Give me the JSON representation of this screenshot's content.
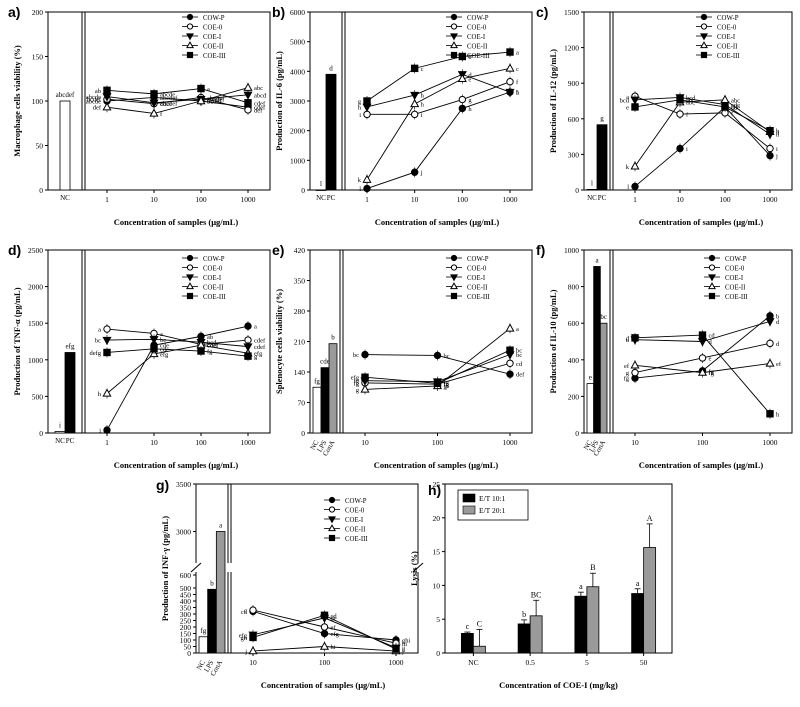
{
  "series_names": [
    "COW-P",
    "COE-0",
    "COE-I",
    "COE-II",
    "COE-III"
  ],
  "colors": {
    "ink": "#000000",
    "grey_bar": "#9a9a9a",
    "white": "#ffffff"
  },
  "chart_data": [
    {
      "panel": "a)",
      "type": "line",
      "ylabel": "Macrophage cells viability (%)",
      "xlabel": "Concentration of samples (μg/mL)",
      "ylim": [
        0,
        200
      ],
      "yticks": [
        0,
        50,
        100,
        150,
        200
      ],
      "control_bars": [
        {
          "label": "NC",
          "value": 100,
          "fill": "white",
          "sig": "abcdef"
        }
      ],
      "x": [
        "1",
        "10",
        "100",
        "1000"
      ],
      "series": [
        {
          "name": "COW-P",
          "values": [
            100,
            104,
            100,
            93
          ],
          "labels": [
            "abcde",
            "abcdef",
            "bcdef",
            "cdef"
          ]
        },
        {
          "name": "COE-0",
          "values": [
            102,
            97,
            104,
            90
          ],
          "labels": [
            "bcdef",
            "cdef",
            "abcdef",
            "def"
          ]
        },
        {
          "name": "COE-I",
          "values": [
            105,
            98,
            102,
            107
          ],
          "labels": [
            "abcde",
            "abcdef",
            "abcdef",
            "abcd"
          ]
        },
        {
          "name": "COE-II",
          "values": [
            93,
            86,
            100,
            115
          ],
          "labels": [
            "def",
            "f",
            "bcdef",
            "abc"
          ]
        },
        {
          "name": "COE-III",
          "values": [
            112,
            108,
            114,
            98
          ],
          "labels": [
            "ab",
            "abcde",
            "a",
            "cdef"
          ]
        }
      ]
    },
    {
      "panel": "b)",
      "type": "line",
      "ylabel": "Production of IL-6 (pg/mL)",
      "xlabel": "Concentration of samples (μg/mL)",
      "ylim": [
        0,
        6000
      ],
      "yticks": [
        0,
        1000,
        2000,
        3000,
        4000,
        5000,
        6000
      ],
      "control_bars": [
        {
          "label": "NC",
          "value": 0,
          "fill": "white",
          "sig": "l"
        },
        {
          "label": "PC",
          "value": 3900,
          "fill": "black",
          "sig": "d"
        }
      ],
      "x": [
        "1",
        "10",
        "100",
        "1000"
      ],
      "series": [
        {
          "name": "COW-P",
          "values": [
            50,
            600,
            2750,
            3300
          ],
          "labels": [
            "l",
            "j",
            "h",
            "h"
          ]
        },
        {
          "name": "COE-0",
          "values": [
            2550,
            2550,
            3050,
            3650
          ],
          "labels": [
            "i",
            "i",
            "g",
            "f"
          ]
        },
        {
          "name": "COE-I",
          "values": [
            2800,
            3200,
            3900,
            3300
          ],
          "labels": [
            "h",
            "h",
            "d",
            "f"
          ]
        },
        {
          "name": "COE-II",
          "values": [
            350,
            2900,
            3750,
            4100
          ],
          "labels": [
            "k",
            "h",
            "e",
            "c"
          ]
        },
        {
          "name": "COE-III",
          "values": [
            3000,
            4100,
            4500,
            4650
          ],
          "labels": [
            "g",
            "c",
            "b",
            "a"
          ]
        }
      ]
    },
    {
      "panel": "c)",
      "type": "line",
      "ylabel": "Production of IL-12 (pg/mL)",
      "xlabel": "Concentration of samples (μg/mL)",
      "ylim": [
        0,
        1500
      ],
      "yticks": [
        0,
        300,
        600,
        900,
        1200,
        1500
      ],
      "control_bars": [
        {
          "label": "NC",
          "value": 5,
          "fill": "white",
          "sig": "l"
        },
        {
          "label": "PC",
          "value": 550,
          "fill": "black",
          "sig": "g"
        }
      ],
      "x": [
        "1",
        "10",
        "100",
        "1000"
      ],
      "series": [
        {
          "name": "COW-P",
          "values": [
            30,
            350,
            700,
            290
          ],
          "labels": [
            "l",
            "i",
            "abc",
            "j"
          ]
        },
        {
          "name": "COE-0",
          "values": [
            790,
            640,
            650,
            350
          ],
          "labels": [
            "a",
            "f",
            "f",
            "i"
          ]
        },
        {
          "name": "COE-I",
          "values": [
            760,
            780,
            720,
            470
          ],
          "labels": [
            "bcd",
            "bcd",
            "cde",
            "h"
          ]
        },
        {
          "name": "COE-II",
          "values": [
            200,
            740,
            760,
            490
          ],
          "labels": [
            "k",
            "abc",
            "abc",
            "h"
          ]
        },
        {
          "name": "COE-III",
          "values": [
            700,
            760,
            700,
            500
          ],
          "labels": [
            "e",
            "abc",
            "cde",
            "h"
          ]
        }
      ]
    },
    {
      "panel": "d)",
      "type": "line",
      "ylabel": "Production of TNF-α (pg/mL)",
      "xlabel": "Concentration of samples (μg/mL)",
      "ylim": [
        0,
        2500
      ],
      "yticks": [
        0,
        500,
        1000,
        1500,
        2000,
        2500
      ],
      "control_bars": [
        {
          "label": "NC",
          "value": 20,
          "fill": "white",
          "sig": "i"
        },
        {
          "label": "PC",
          "value": 1100,
          "fill": "black",
          "sig": "efg"
        }
      ],
      "x": [
        "1",
        "10",
        "100",
        "1000"
      ],
      "series": [
        {
          "name": "COW-P",
          "values": [
            40,
            1200,
            1320,
            1460
          ],
          "labels": [
            "i",
            "cde",
            "ab",
            "a"
          ]
        },
        {
          "name": "COE-0",
          "values": [
            1420,
            1360,
            1210,
            1270
          ],
          "labels": [
            "a",
            "a",
            "cdef",
            "cdef"
          ]
        },
        {
          "name": "COE-I",
          "values": [
            1270,
            1280,
            1240,
            1180
          ],
          "labels": [
            "bc",
            "bc",
            "bcd",
            "cdef"
          ]
        },
        {
          "name": "COE-II",
          "values": [
            540,
            1080,
            1200,
            1090
          ],
          "labels": [
            "h",
            "efg",
            "cdef",
            "efg"
          ]
        },
        {
          "name": "COE-III",
          "values": [
            1100,
            1150,
            1120,
            1050
          ],
          "labels": [
            "defg",
            "cde",
            "fg",
            "g"
          ]
        }
      ]
    },
    {
      "panel": "e)",
      "type": "line",
      "ylabel": "Splenocyte cells viability (%)",
      "xlabel": "Concentration of samples (μg/mL)",
      "ylim": [
        0,
        420
      ],
      "yticks": [
        0,
        70,
        140,
        210,
        280,
        350,
        420
      ],
      "control_bars": [
        {
          "label": "NC",
          "value": 105,
          "fill": "white",
          "sig": "fg"
        },
        {
          "label": "LPS",
          "value": 150,
          "fill": "black",
          "sig": "cde"
        },
        {
          "label": "ConA",
          "value": 205,
          "fill": "grey",
          "sig": "b"
        }
      ],
      "x": [
        "10",
        "100",
        "1000"
      ],
      "series": [
        {
          "name": "COW-P",
          "values": [
            180,
            178,
            135
          ],
          "labels": [
            "bc",
            "bc",
            "def"
          ]
        },
        {
          "name": "COE-0",
          "values": [
            115,
            112,
            160
          ],
          "labels": [
            "fg",
            "fg",
            "cd"
          ]
        },
        {
          "name": "COE-I",
          "values": [
            120,
            118,
            180
          ],
          "labels": [
            "fg",
            "fg",
            "bc"
          ]
        },
        {
          "name": "COE-II",
          "values": [
            100,
            108,
            240
          ],
          "labels": [
            "g",
            "g",
            "a"
          ]
        },
        {
          "name": "COE-III",
          "values": [
            128,
            114,
            190
          ],
          "labels": [
            "efg",
            "fg",
            "bc"
          ]
        }
      ]
    },
    {
      "panel": "f)",
      "type": "line",
      "ylabel": "Production of IL-10 (pg/mL)",
      "xlabel": "Concentration of samples (μg/mL)",
      "ylim": [
        0,
        1000
      ],
      "yticks": [
        0,
        200,
        400,
        600,
        800,
        1000
      ],
      "control_bars": [
        {
          "label": "NC",
          "value": 270,
          "fill": "white",
          "sig": "e"
        },
        {
          "label": "LPS",
          "value": 910,
          "fill": "black",
          "sig": "a"
        },
        {
          "label": "ConA",
          "value": 600,
          "fill": "grey",
          "sig": "bc"
        }
      ],
      "x": [
        "10",
        "100",
        "1000"
      ],
      "series": [
        {
          "name": "COW-P",
          "values": [
            300,
            340,
            640
          ],
          "labels": [
            "fg",
            "fg",
            "b"
          ]
        },
        {
          "name": "COE-0",
          "values": [
            330,
            410,
            490
          ],
          "labels": [
            "g",
            "e",
            "d"
          ]
        },
        {
          "name": "COE-I",
          "values": [
            510,
            500,
            610
          ],
          "labels": [
            "d",
            "d",
            "d"
          ]
        },
        {
          "name": "COE-II",
          "values": [
            370,
            330,
            380
          ],
          "labels": [
            "ef",
            "fg",
            "ef"
          ]
        },
        {
          "name": "COE-III",
          "values": [
            520,
            535,
            105
          ],
          "labels": [
            "d",
            "cd",
            "h"
          ]
        }
      ]
    },
    {
      "panel": "g)",
      "type": "line",
      "ylabel": "Production of INF-γ (pg/mL)",
      "xlabel": "Concentration of samples (μg/mL)",
      "ylim": [
        0,
        3500
      ],
      "yticks": [
        0,
        50,
        100,
        150,
        200,
        250,
        300,
        350,
        400,
        450,
        500,
        600,
        3000,
        3500
      ],
      "control_bars": [
        {
          "label": "NC",
          "value": 125,
          "fill": "white",
          "sig": "fg"
        },
        {
          "label": "LPS",
          "value": 490,
          "fill": "black",
          "sig": "b"
        },
        {
          "label": "ConA",
          "value": 3000,
          "fill": "grey",
          "sig": "a"
        }
      ],
      "x": [
        "10",
        "100",
        "1000"
      ],
      "series": [
        {
          "name": "COW-P",
          "values": [
            320,
            150,
            100
          ],
          "labels": [
            "cd",
            "efg",
            "ghi"
          ]
        },
        {
          "name": "COE-0",
          "values": [
            330,
            200,
            75
          ],
          "labels": [
            "c",
            "ef",
            "hi"
          ]
        },
        {
          "name": "COE-I",
          "values": [
            140,
            270,
            40
          ],
          "labels": [
            "efg",
            "de",
            "ij"
          ]
        },
        {
          "name": "COE-II",
          "values": [
            15,
            50,
            15
          ],
          "labels": [
            "j",
            "hi",
            "j"
          ]
        },
        {
          "name": "COE-III",
          "values": [
            120,
            290,
            30
          ],
          "labels": [
            "gh",
            "cd",
            "i"
          ]
        }
      ]
    },
    {
      "panel": "h)",
      "type": "bar",
      "ylabel": "Lysis (%)",
      "xlabel": "Concentration of COE-I (mg/kg)",
      "ylim": [
        0,
        25
      ],
      "yticks": [
        0,
        5,
        10,
        15,
        20,
        25
      ],
      "categories": [
        "NC",
        "0.5",
        "5",
        "50"
      ],
      "series": [
        {
          "name": "E/T 10:1",
          "values": [
            2.9,
            4.3,
            8.4,
            8.8
          ],
          "errors": [
            0.2,
            0.6,
            0.6,
            0.7
          ],
          "labels": [
            "c",
            "b",
            "a",
            "a"
          ]
        },
        {
          "name": "E/T 20:1",
          "values": [
            1.0,
            5.5,
            9.8,
            15.6
          ],
          "errors": [
            2.5,
            2.3,
            2.0,
            3.5
          ],
          "labels": [
            "C",
            "BC",
            "B",
            "A"
          ]
        }
      ]
    }
  ]
}
